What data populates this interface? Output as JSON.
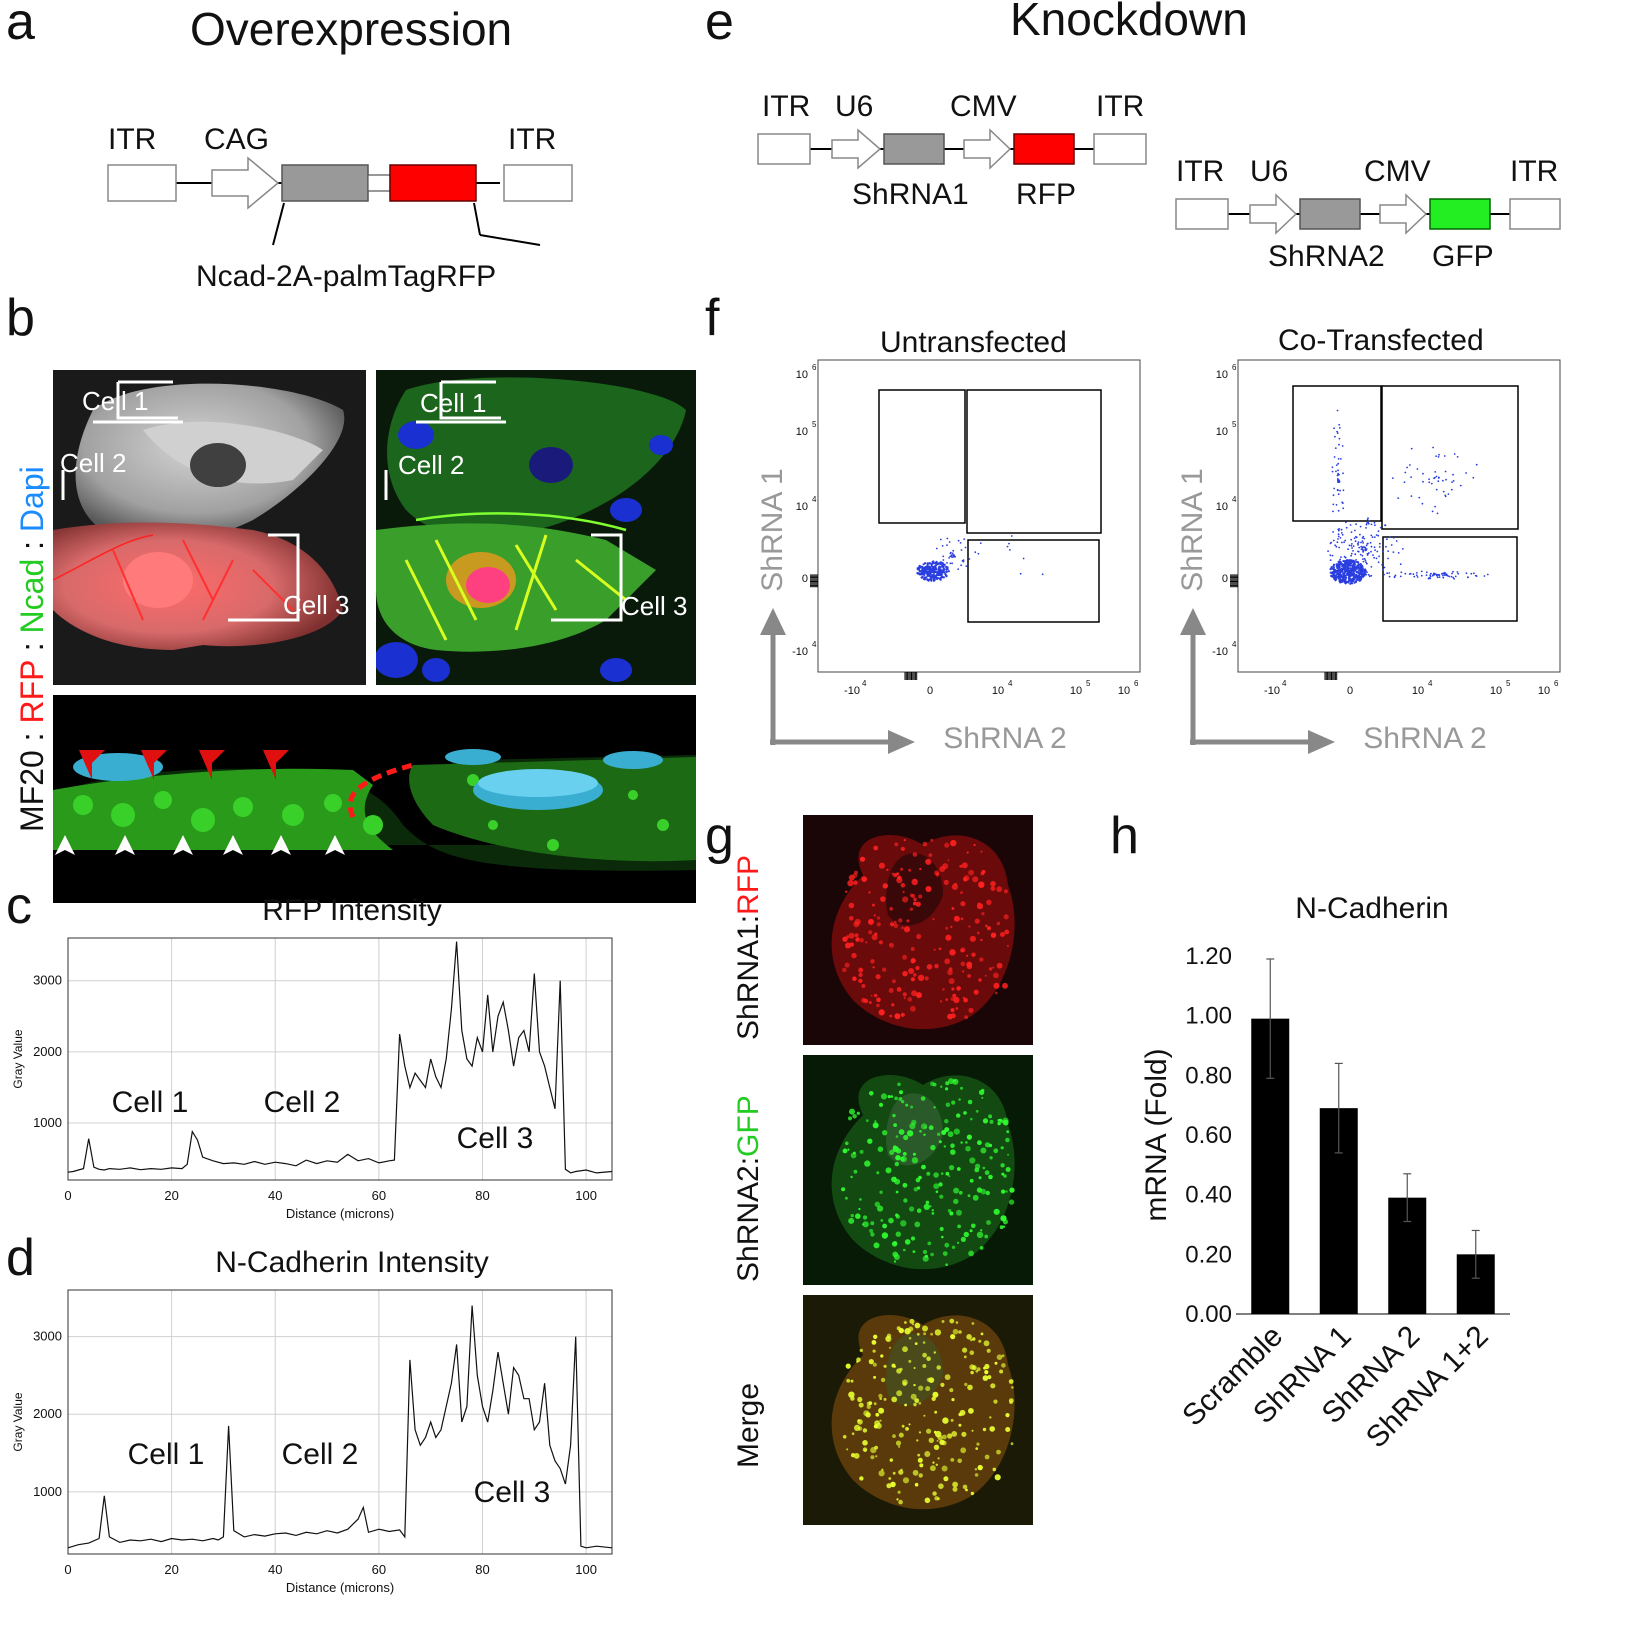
{
  "figure": {
    "panel_letters": [
      "a",
      "b",
      "c",
      "d",
      "e",
      "f",
      "g",
      "h"
    ],
    "a": {
      "title": "Overexpression",
      "construct_labels": [
        "ITR",
        "CAG",
        "ITR"
      ],
      "insert_label": "Ncad-2A-palmTagRFP"
    },
    "b": {
      "side_label": {
        "p1": "MF20 : ",
        "p2": "RFP",
        "p3": " : ",
        "p4": "Ncad",
        "p5": " : ",
        "p6": "Dapi"
      },
      "cell_labels": [
        "Cell 1",
        "Cell 2",
        "Cell 3"
      ],
      "colors": {
        "red": "#ff1a1a",
        "green": "#22dd22",
        "blue": "#1a8cff"
      }
    },
    "e": {
      "title": "Knockdown",
      "construct1": {
        "labels": [
          "ITR",
          "U6",
          "CMV",
          "ITR"
        ],
        "shrna": "ShRNA1",
        "reporter": "RFP"
      },
      "construct2": {
        "labels": [
          "ITR",
          "U6",
          "CMV",
          "ITR"
        ],
        "shrna": "ShRNA2",
        "reporter": "GFP"
      }
    },
    "f": {
      "left_title": "Untransfected",
      "right_title": "Co-Transfected",
      "y_label": "ShRNA 1",
      "x_label": "ShRNA 2",
      "y_ticks": [
        "10",
        "10",
        "10",
        "0",
        "-10"
      ],
      "y_exps": [
        "6",
        "5",
        "4",
        "",
        "4"
      ],
      "x_ticks": [
        "-10",
        "0",
        "10",
        "10",
        "10"
      ],
      "x_exps": [
        "4",
        "",
        "4",
        "5",
        "6"
      ]
    },
    "g": {
      "labels": {
        "r1a": "ShRNA1:",
        "r1b": "RFP",
        "r2a": "ShRNA2:",
        "r2b": "GFP",
        "r3": "Merge"
      }
    }
  },
  "chart_data": [
    {
      "type": "line",
      "panel": "c",
      "title": "RFP Intensity",
      "xlabel": "Distance (microns)",
      "ylabel": "Gray Value",
      "xlim": [
        0,
        105
      ],
      "ylim": [
        200,
        3600
      ],
      "x_ticks": [
        0,
        20,
        40,
        60,
        80,
        100
      ],
      "y_ticks": [
        1000,
        2000,
        3000
      ],
      "annotations": [
        "Cell 1",
        "Cell 2",
        "Cell 3"
      ],
      "x": [
        0,
        1,
        2,
        3,
        4,
        5,
        6,
        7,
        8,
        10,
        12,
        14,
        16,
        18,
        20,
        22,
        23,
        24,
        25,
        26,
        28,
        30,
        32,
        34,
        36,
        38,
        40,
        42,
        44,
        46,
        48,
        50,
        52,
        54,
        56,
        58,
        60,
        62,
        63,
        64,
        65,
        66,
        67,
        68,
        69,
        70,
        71,
        72,
        73,
        74,
        75,
        76,
        77,
        78,
        79,
        80,
        81,
        82,
        83,
        84,
        85,
        86,
        87,
        88,
        89,
        90,
        91,
        92,
        93,
        94,
        95,
        96,
        97,
        98,
        100,
        102,
        105
      ],
      "y": [
        310,
        320,
        340,
        360,
        780,
        380,
        350,
        340,
        360,
        350,
        370,
        345,
        360,
        350,
        370,
        360,
        420,
        880,
        760,
        520,
        470,
        430,
        440,
        420,
        460,
        420,
        450,
        430,
        400,
        480,
        430,
        470,
        450,
        560,
        470,
        500,
        440,
        470,
        480,
        2250,
        1800,
        1500,
        1700,
        1600,
        1500,
        1900,
        1650,
        1500,
        1900,
        2600,
        3550,
        2300,
        1900,
        1800,
        2200,
        2000,
        2800,
        2000,
        2500,
        2700,
        2300,
        1800,
        2200,
        2300,
        2000,
        3100,
        2000,
        1800,
        1500,
        1200,
        3000,
        350,
        300,
        320,
        340,
        300,
        320
      ]
    },
    {
      "type": "line",
      "panel": "d",
      "title": "N-Cadherin Intensity",
      "xlabel": "Distance (microns)",
      "ylabel": "Gray Value",
      "xlim": [
        0,
        105
      ],
      "ylim": [
        200,
        3600
      ],
      "x_ticks": [
        0,
        20,
        40,
        60,
        80,
        100
      ],
      "y_ticks": [
        1000,
        2000,
        3000
      ],
      "annotations": [
        "Cell 1",
        "Cell 2",
        "Cell 3"
      ],
      "x": [
        0,
        2,
        4,
        6,
        7,
        8,
        10,
        12,
        14,
        16,
        18,
        20,
        22,
        24,
        26,
        28,
        29,
        30,
        31,
        32,
        34,
        36,
        38,
        40,
        42,
        44,
        46,
        48,
        50,
        52,
        54,
        56,
        57,
        58,
        60,
        62,
        64,
        65,
        66,
        67,
        68,
        69,
        70,
        71,
        72,
        73,
        74,
        75,
        76,
        77,
        78,
        79,
        80,
        81,
        82,
        83,
        84,
        85,
        86,
        87,
        88,
        89,
        90,
        91,
        92,
        93,
        94,
        95,
        96,
        97,
        98,
        99,
        100,
        102,
        105
      ],
      "y": [
        280,
        320,
        340,
        400,
        950,
        420,
        350,
        380,
        370,
        390,
        360,
        400,
        380,
        390,
        370,
        400,
        380,
        420,
        1850,
        500,
        420,
        450,
        430,
        460,
        470,
        440,
        480,
        460,
        500,
        470,
        520,
        650,
        800,
        480,
        520,
        490,
        510,
        420,
        2700,
        1800,
        1600,
        1700,
        1900,
        1700,
        1800,
        2100,
        2400,
        2900,
        1900,
        2100,
        3400,
        2500,
        2100,
        1900,
        2300,
        2800,
        2400,
        2000,
        2600,
        2500,
        2200,
        2200,
        1800,
        1900,
        2400,
        1600,
        1400,
        1300,
        1100,
        1600,
        3000,
        300,
        280,
        300,
        280
      ]
    },
    {
      "type": "bar",
      "panel": "h",
      "title": "N-Cadherin",
      "xlabel": "",
      "ylabel": "mRNA (Fold)",
      "categories": [
        "Scramble",
        "ShRNA 1",
        "ShRNA 2",
        "ShRNA 1+2"
      ],
      "values": [
        0.99,
        0.69,
        0.39,
        0.2
      ],
      "error": [
        0.2,
        0.15,
        0.08,
        0.08
      ],
      "ylim": [
        0,
        1.2
      ],
      "y_ticks": [
        "0.00",
        "0.20",
        "0.40",
        "0.60",
        "0.80",
        "1.00",
        "1.20"
      ]
    }
  ]
}
